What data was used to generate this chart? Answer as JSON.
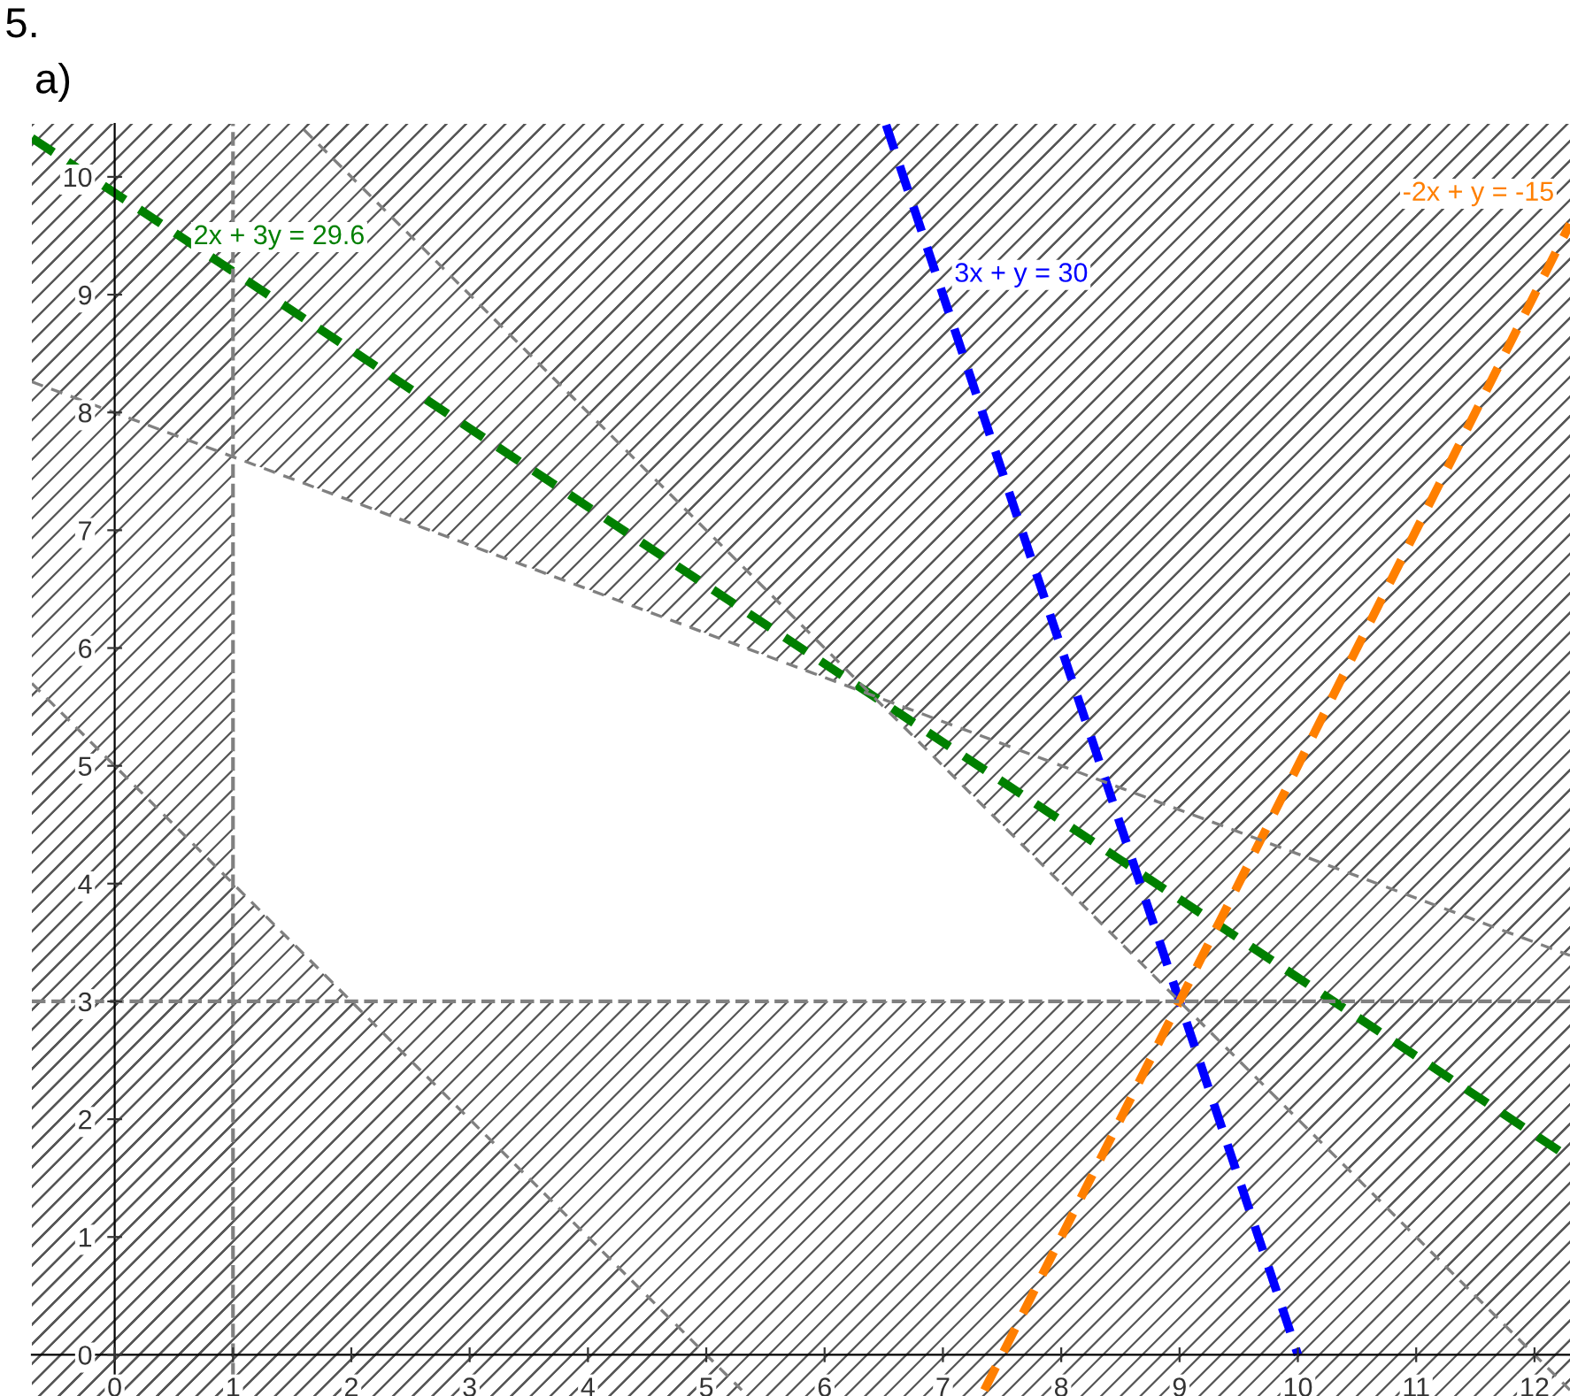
{
  "chart_data": {
    "type": "line",
    "title": "5.",
    "subtitle": "a)",
    "xlim": [
      -0.7,
      12.3
    ],
    "ylim": [
      -0.35,
      10.45
    ],
    "xticks": [
      0,
      1,
      2,
      3,
      4,
      5,
      6,
      7,
      8,
      9,
      10,
      11,
      12
    ],
    "yticks": [
      0,
      1,
      2,
      3,
      4,
      5,
      6,
      7,
      8,
      9,
      10
    ],
    "grid": false,
    "legend": false,
    "marker": "none",
    "line_style": "dashed",
    "series": [
      {
        "name": "2x + 3y = 29.6",
        "color": "#008000",
        "x": [
          -0.7,
          0.5,
          12.3
        ],
        "values": [
          10.33,
          9.53,
          1.67
        ]
      },
      {
        "name": "3x + y = 30",
        "color": "#0000ff",
        "x": [
          6.52,
          6.93,
          10
        ],
        "values": [
          10.44,
          9.21,
          0
        ]
      },
      {
        "name": "-2x + y = -15",
        "color": "#ff7f00",
        "x": [
          7.35,
          12.25,
          12.3
        ],
        "values": [
          -0.3,
          9.5,
          9.6
        ]
      },
      {
        "color": "#808080",
        "x": [
          -0.7,
          12.3
        ],
        "values": [
          8.26,
          3.39
        ]
      },
      {
        "color": "#808080",
        "x": [
          1.6,
          12.3
        ],
        "values": [
          10.4,
          -0.3
        ]
      },
      {
        "color": "#808080",
        "x": [
          -0.7,
          5.3
        ],
        "values": [
          5.7,
          -0.3
        ]
      }
    ],
    "bands": [
      {
        "axis": "x",
        "from": -0.7,
        "to": 1,
        "color": "#555555"
      },
      {
        "axis": "y",
        "from": -0.35,
        "to": 3,
        "color": "#555555"
      }
    ],
    "ref_lines": [
      {
        "axis": "x",
        "value": 1,
        "color": "#808080",
        "line_style": "dashed"
      },
      {
        "axis": "y",
        "value": 3,
        "color": "#808080",
        "line_style": "dashed"
      }
    ]
  }
}
